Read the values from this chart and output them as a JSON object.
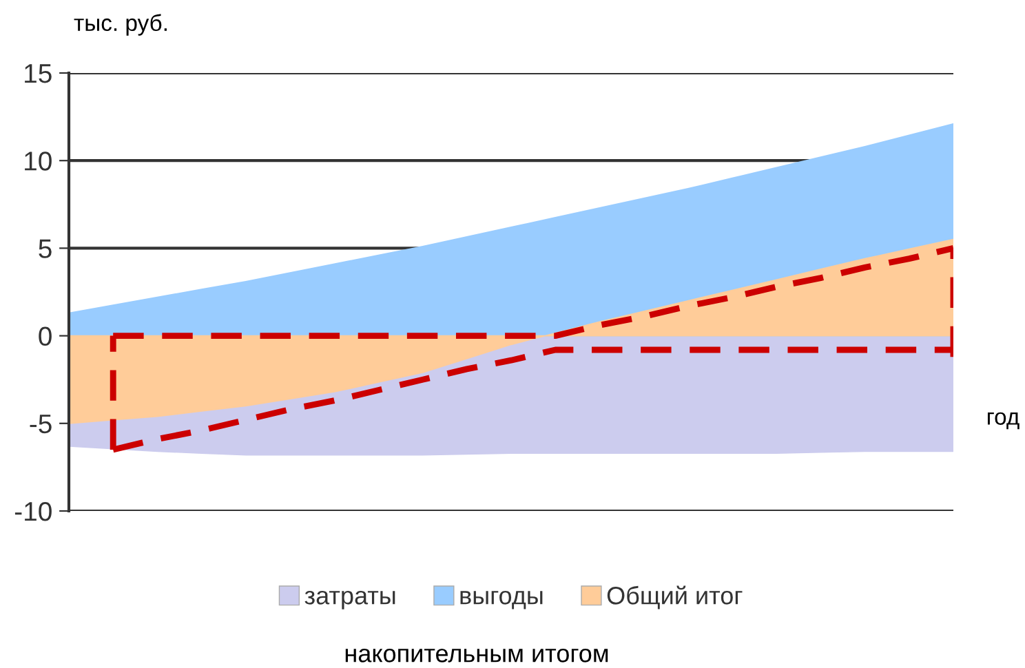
{
  "chart_data": {
    "type": "area",
    "ylabel": "тыс. руб.",
    "xlabel": "год",
    "annotations": [
      "накопительным итогом"
    ],
    "categories": [
      null,
      null,
      null,
      null,
      null,
      null,
      null,
      null,
      null,
      null,
      null,
      null,
      null,
      null,
      null,
      null,
      null,
      null,
      null,
      null,
      null
    ],
    "series": [
      {
        "name": "затраты",
        "color": "#ccccee",
        "values": [
          -6.3,
          -6.45,
          -6.6,
          -6.7,
          -6.8,
          -6.8,
          -6.8,
          -6.8,
          -6.8,
          -6.75,
          -6.7,
          -6.7,
          -6.7,
          -6.7,
          -6.7,
          -6.7,
          -6.7,
          -6.65,
          -6.6,
          -6.6,
          -6.6
        ]
      },
      {
        "name": "выгоды",
        "color": "#99ccff",
        "values": [
          1.3,
          1.75,
          2.2,
          2.65,
          3.1,
          3.6,
          4.1,
          4.6,
          5.1,
          5.65,
          6.2,
          6.75,
          7.3,
          7.85,
          8.4,
          9.0,
          9.6,
          10.2,
          10.8,
          11.45,
          12.1
        ]
      },
      {
        "name": "Общий итог",
        "color": "#ffcc99",
        "values": [
          -5.0,
          -4.8,
          -4.6,
          -4.3,
          -4.0,
          -3.6,
          -3.2,
          -2.65,
          -2.1,
          -1.3,
          -0.5,
          0.15,
          0.8,
          1.4,
          2.0,
          2.6,
          3.2,
          3.8,
          4.4,
          4.95,
          5.5
        ]
      },
      {
        "type": "line",
        "color": "#cc0000",
        "line_style": "dashed",
        "values": [
          null,
          -6.5,
          -5.9,
          -5.4,
          -4.8,
          -4.2,
          -3.7,
          -3.1,
          -2.5,
          -1.9,
          -1.4,
          -0.8,
          -0.8,
          -0.8,
          -0.8,
          -0.8,
          -0.8,
          -0.8,
          -0.8,
          -0.8,
          -0.8
        ]
      },
      {
        "type": "line",
        "color": "#cc0000",
        "line_style": "dashed",
        "values": [
          null,
          0,
          0,
          0,
          0,
          0,
          0,
          0,
          0,
          0,
          0,
          0,
          0.6,
          1.1,
          1.7,
          2.2,
          2.8,
          3.3,
          3.9,
          4.4,
          5.0
        ],
        "errors": [
          null,
          [
            -6.5,
            0
          ],
          null,
          null,
          null,
          null,
          null,
          null,
          null,
          null,
          null,
          null,
          null,
          null,
          null,
          null,
          null,
          null,
          null,
          null,
          [
            -1.2,
            5.0
          ]
        ]
      }
    ],
    "ylim": [
      -10,
      15
    ],
    "yticks": [
      -10,
      -5,
      0,
      5,
      10,
      15
    ],
    "grid": "y",
    "legend": "bottom"
  }
}
